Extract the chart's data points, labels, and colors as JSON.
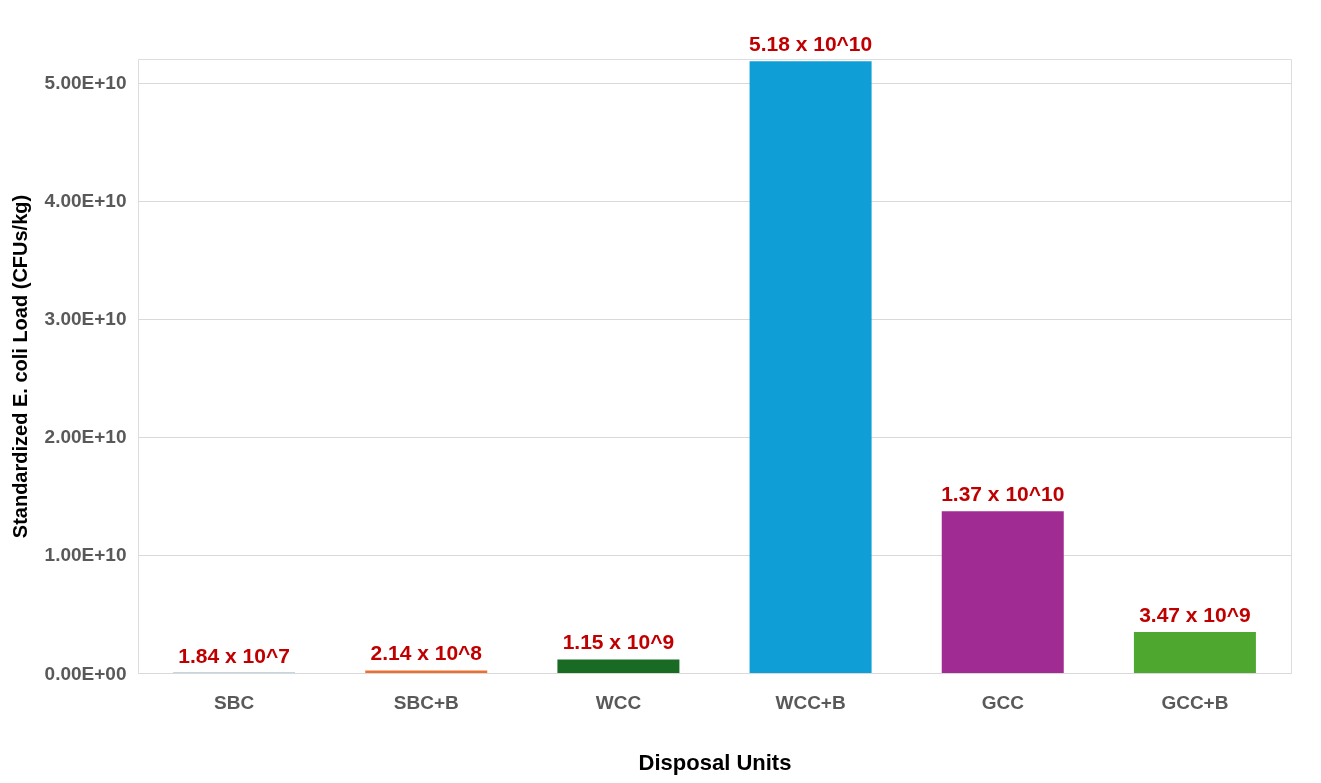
{
  "chart_data": {
    "type": "bar",
    "xlabel": "Disposal Units",
    "ylabel": "Standardized E. coli Load (CFUs/kg)",
    "categories": [
      "SBC",
      "SBC+B",
      "WCC",
      "WCC+B",
      "GCC",
      "GCC+B"
    ],
    "values": [
      18400000.0,
      214000000.0,
      1150000000.0,
      51800000000.0,
      13700000000.0,
      3470000000.0
    ],
    "colors": [
      "#156082",
      "#e97132",
      "#196b24",
      "#0f9ed5",
      "#a02b93",
      "#4ea72e"
    ],
    "value_labels": [
      "1.84 x 10^7",
      "2.14 x 10^8",
      "1.15 x 10^9",
      "5.18 x 10^10",
      "1.37 x 10^10",
      "3.47 x 10^9"
    ],
    "ylim": [
      0,
      52000000000.0
    ],
    "yticks": [
      {
        "value": 0,
        "label": "0.00E+00"
      },
      {
        "value": 10000000000.0,
        "label": "1.00E+10"
      },
      {
        "value": 20000000000.0,
        "label": "2.00E+10"
      },
      {
        "value": 30000000000.0,
        "label": "3.00E+10"
      },
      {
        "value": 40000000000.0,
        "label": "4.00E+10"
      },
      {
        "value": 50000000000.0,
        "label": "5.00E+10"
      }
    ],
    "grid": "y"
  }
}
